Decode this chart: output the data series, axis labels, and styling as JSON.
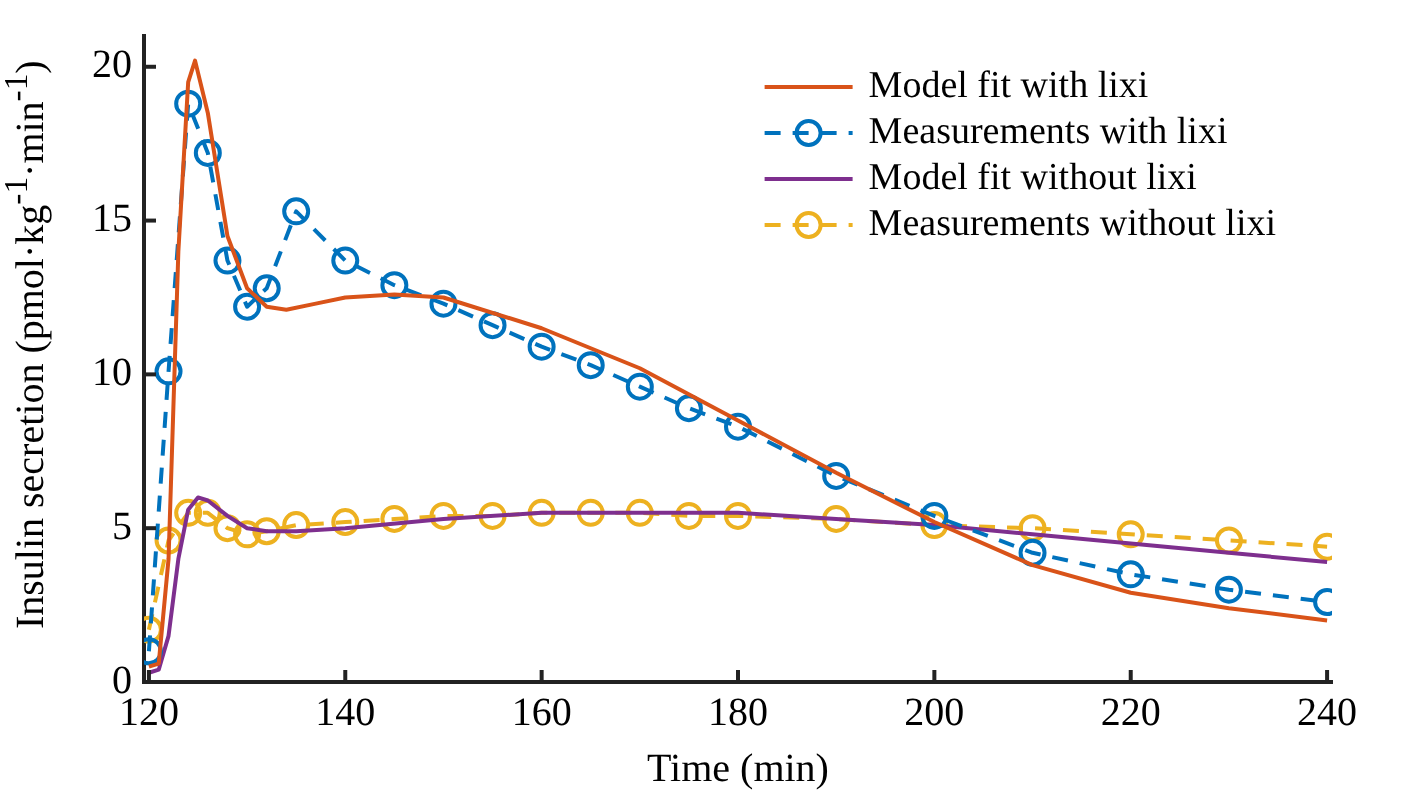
{
  "chart_data": {
    "type": "line",
    "xlabel": "Time (min)",
    "ylabel": "Insulin secretion (pmol·kg$^{-1}$·min$^{-1}$)",
    "xlim": [
      119.5,
      240.5
    ],
    "xticks": [
      120,
      140,
      160,
      180,
      200,
      220,
      240
    ],
    "ylim": [
      0,
      21
    ],
    "yticks": [
      0,
      5,
      10,
      15,
      20
    ],
    "grid": false,
    "legend": "top right",
    "series": [
      {
        "name": "Model fit with lixi",
        "color": "#d95319",
        "marker": "none",
        "line_style": "solid",
        "x": [
          120,
          121,
          122,
          123,
          124,
          124.7,
          126,
          128,
          130,
          132,
          134,
          137,
          140,
          145,
          150,
          160,
          170,
          180,
          190,
          200,
          210,
          220,
          230,
          240
        ],
        "values": [
          0.5,
          0.6,
          4,
          14,
          19.5,
          20.2,
          18.5,
          14.5,
          12.8,
          12.2,
          12.1,
          12.3,
          12.5,
          12.6,
          12.5,
          11.5,
          10.2,
          8.5,
          6.8,
          5.2,
          3.8,
          2.9,
          2.4,
          2.0
        ]
      },
      {
        "name": "Measurements with lixi",
        "color": "#0072bd",
        "marker": "circle",
        "line_style": "dashed",
        "x": [
          120,
          122,
          124,
          126,
          128,
          130,
          132,
          135,
          140,
          145,
          150,
          155,
          160,
          165,
          170,
          175,
          180,
          190,
          200,
          210,
          220,
          230,
          240
        ],
        "values": [
          1.0,
          10.1,
          18.8,
          17.2,
          13.7,
          12.2,
          12.8,
          15.3,
          13.7,
          12.9,
          12.3,
          11.6,
          10.9,
          10.3,
          9.6,
          8.9,
          8.3,
          6.7,
          5.4,
          4.2,
          3.5,
          3.0,
          2.6
        ]
      },
      {
        "name": "Model fit without lixi",
        "color": "#7e2f8e",
        "marker": "none",
        "line_style": "solid",
        "x": [
          120,
          121,
          122,
          123,
          124,
          125,
          126,
          128,
          130,
          132,
          135,
          140,
          150,
          160,
          170,
          180,
          190,
          200,
          210,
          220,
          230,
          240
        ],
        "values": [
          0.3,
          0.4,
          1.5,
          4,
          5.6,
          6.0,
          5.9,
          5.4,
          5.0,
          4.9,
          4.9,
          5.0,
          5.3,
          5.5,
          5.5,
          5.5,
          5.3,
          5.1,
          4.8,
          4.5,
          4.2,
          3.9
        ]
      },
      {
        "name": "Measurements without lixi",
        "color": "#edb120",
        "marker": "circle",
        "line_style": "dashed",
        "x": [
          120,
          122,
          124,
          126,
          128,
          130,
          132,
          135,
          140,
          145,
          150,
          155,
          160,
          165,
          170,
          175,
          180,
          190,
          200,
          210,
          220,
          230,
          240
        ],
        "values": [
          1.7,
          4.6,
          5.5,
          5.5,
          5.0,
          4.8,
          4.9,
          5.1,
          5.2,
          5.3,
          5.4,
          5.4,
          5.5,
          5.5,
          5.5,
          5.4,
          5.4,
          5.3,
          5.1,
          5.0,
          4.8,
          4.6,
          4.4
        ]
      }
    ]
  }
}
